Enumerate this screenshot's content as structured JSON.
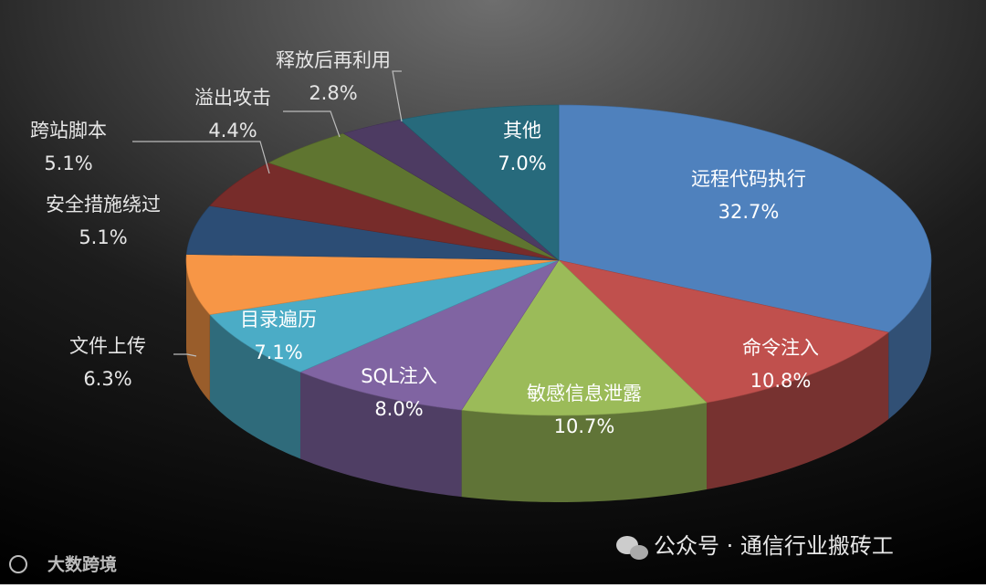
{
  "chart_data": {
    "type": "pie",
    "categories": [
      "远程代码执行",
      "命令注入",
      "敏感信息泄露",
      "SQL注入",
      "目录遍历",
      "文件上传",
      "安全措施绕过",
      "跨站脚本",
      "溢出攻击",
      "释放后再利用",
      "其他"
    ],
    "values": [
      32.7,
      10.8,
      10.7,
      8.0,
      7.1,
      6.3,
      5.1,
      5.1,
      4.4,
      2.8,
      7.0
    ],
    "value_labels": [
      "32.7%",
      "10.8%",
      "10.7%",
      "8.0%",
      "7.1%",
      "6.3%",
      "5.1%",
      "5.1%",
      "4.4%",
      "2.8%",
      "7.0%"
    ],
    "colors": [
      "#4f81bd",
      "#c0504d",
      "#9bbb59",
      "#8064a2",
      "#4bacc6",
      "#f79646",
      "#2c4d75",
      "#772c2a",
      "#5f7530",
      "#4d3b62",
      "#276a7c"
    ]
  },
  "watermarks": {
    "left": "大数跨境",
    "right": "公众号 · 通信行业搬砖工"
  }
}
